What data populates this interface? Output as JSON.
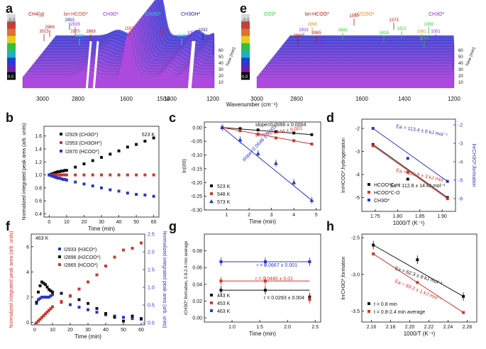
{
  "colors": {
    "black": "#111111",
    "red": "#d2342a",
    "blue": "#2a35c8",
    "green": "#2bc82b",
    "orange": "#e08a1e",
    "purple": "#8a2be2",
    "cyan": "#35d0e0",
    "darkred": "#b01818",
    "navy": "#1b1b8f"
  },
  "chart_data": [
    {
      "panel": "a",
      "type": "waterfall-spectra",
      "species": [
        {
          "name": "CH4(g)",
          "color": "#b01818"
        },
        {
          "name": "bri-HCOO*",
          "color": "#d2342a"
        },
        {
          "name": "CH3O*",
          "color": "#8a2be2"
        },
        {
          "name": "CH3O*",
          "color": "#35d0e0"
        },
        {
          "name": "CH3OH*",
          "color": "#1b1b8f"
        }
      ],
      "peaks": [
        "3015",
        "2969",
        "2953",
        "2929",
        "2870",
        "2820",
        "2869",
        "1592",
        "1374",
        "1146",
        "1053",
        "1032"
      ],
      "xticks": [
        "3000",
        "2800",
        "1600",
        "1500",
        "1400",
        "1200"
      ],
      "yticks": [
        "10",
        "20",
        "30",
        "40",
        "50",
        "60"
      ],
      "y_axis_label": "Time (min)",
      "colorbar": [
        "0.0",
        "-0.0"
      ]
    },
    {
      "panel": "e",
      "type": "waterfall-spectra",
      "species": [
        {
          "name": "CO3*",
          "color": "#2bc82b"
        },
        {
          "name": "bri-HCOO*",
          "color": "#b01818"
        },
        {
          "name": "H2COO*",
          "color": "#e08a1e"
        },
        {
          "name": "CH3O*",
          "color": "#8a2be2"
        }
      ],
      "peaks": [
        "2933",
        "2969",
        "2896",
        "2865",
        "2825",
        "1641",
        "1590",
        "1416",
        "1373",
        "1321",
        "1081",
        "1069",
        "1051",
        "1096"
      ],
      "xticks": [
        "3000",
        "2800",
        "1600",
        "1400",
        "1200"
      ],
      "yticks": [
        "10",
        "20",
        "30",
        "40",
        "50",
        "60"
      ],
      "y_axis_label": "Time (min)",
      "x_axis_label": "Wavenumber (cm⁻¹)",
      "colorbar": [
        "0.0",
        "-0.0"
      ]
    },
    {
      "panel": "b",
      "type": "scatter",
      "xlabel": "Time (min)",
      "ylabel": "Normalized integrated peak area (arb. units)",
      "xlim": [
        -3,
        63
      ],
      "ylim": [
        0.35,
        1.75
      ],
      "xticks": [
        "0",
        "10",
        "20",
        "30",
        "40",
        "50",
        "60"
      ],
      "yticks": [
        "0.4",
        "0.6",
        "0.8",
        "1.0",
        "1.2",
        "1.4",
        "1.6"
      ],
      "annotation": "523 K",
      "series": [
        {
          "name": "I2929 (CH3O*)",
          "color": "#111111",
          "x": [
            0,
            1,
            2,
            3,
            4,
            5,
            6,
            7,
            8,
            9,
            10,
            15,
            20,
            25,
            30,
            35,
            40,
            45,
            50,
            55,
            60
          ],
          "y": [
            1.0,
            1.01,
            1.02,
            1.03,
            1.04,
            1.05,
            1.05,
            1.06,
            1.06,
            1.07,
            1.07,
            1.12,
            1.17,
            1.22,
            1.27,
            1.32,
            1.37,
            1.43,
            1.47,
            1.52,
            1.57
          ]
        },
        {
          "name": "I2953 (CH3OH*)",
          "color": "#d2342a",
          "x": [
            0,
            1,
            2,
            3,
            4,
            5,
            6,
            7,
            8,
            9,
            10,
            15,
            20,
            25,
            30,
            35,
            40,
            45,
            50,
            55,
            60
          ],
          "y": [
            1.0,
            1.0,
            1.0,
            1.0,
            1.0,
            1.0,
            1.0,
            1.0,
            1.0,
            1.0,
            1.0,
            1.0,
            1.0,
            1.0,
            1.0,
            1.0,
            1.0,
            1.0,
            1.0,
            1.0,
            1.0
          ]
        },
        {
          "name": "I2870 (HCOO*)",
          "color": "#2a35c8",
          "x": [
            0,
            1,
            2,
            3,
            4,
            5,
            6,
            7,
            8,
            9,
            10,
            15,
            20,
            25,
            30,
            35,
            40,
            45,
            50,
            55,
            60
          ],
          "y": [
            1.0,
            0.99,
            0.98,
            0.97,
            0.96,
            0.95,
            0.95,
            0.94,
            0.93,
            0.93,
            0.92,
            0.89,
            0.86,
            0.83,
            0.8,
            0.77,
            0.75,
            0.72,
            0.7,
            0.69,
            0.67
          ]
        }
      ]
    },
    {
      "panel": "c",
      "type": "scatter-fit",
      "xlabel": "Time (min)",
      "ylabel": "ln(I/I0)",
      "xlim": [
        0,
        5.2
      ],
      "ylim": [
        -0.3,
        0.02
      ],
      "xticks": [
        "1",
        "2",
        "3",
        "4",
        "5"
      ],
      "yticks": [
        "0.00",
        "-0.05",
        "-0.10",
        "-0.15",
        "-0.20",
        "-0.25",
        "-0.30"
      ],
      "series": [
        {
          "name": "523 K",
          "color": "#111111",
          "slope_label": "slope=0.0066 ± 0.0004",
          "x": [
            0.8,
            1.6,
            2.4,
            3.2,
            4.0,
            4.8
          ],
          "y": [
            0.0,
            -0.004,
            -0.009,
            -0.015,
            -0.02,
            -0.026
          ]
        },
        {
          "name": "548 K",
          "color": "#d2342a",
          "slope_label": "slope=0.0144 ± 0.001",
          "x": [
            0.8,
            1.6,
            2.4,
            3.2,
            4.0,
            4.8
          ],
          "y": [
            0.0,
            -0.012,
            -0.024,
            -0.038,
            -0.048,
            -0.06
          ]
        },
        {
          "name": "573 K",
          "color": "#2a35c8",
          "slope_label": "slope=0.0646 ± 0.003",
          "x": [
            0.8,
            1.6,
            2.4,
            3.2,
            4.0,
            4.8
          ],
          "y": [
            0.0,
            -0.045,
            -0.095,
            -0.13,
            -0.2,
            -0.265
          ]
        }
      ]
    },
    {
      "panel": "d",
      "type": "arrhenius",
      "xlabel": "1000/T (K⁻¹)",
      "ylabel": "lnrHCOO*,hydrogenation",
      "ylabel2": "lnrCH3O*,formation",
      "xlim": [
        1.72,
        1.93
      ],
      "ylim": [
        -5.6,
        -1.6
      ],
      "xticks": [
        "1.75",
        "1.80",
        "1.85",
        "1.90"
      ],
      "yticks": [
        "-2",
        "-3",
        "-4",
        "-5"
      ],
      "y2ticks": [
        "-2",
        "-3",
        "-4",
        "-5",
        "-6"
      ],
      "series": [
        {
          "name": "HCOO*C-H",
          "color": "#111111",
          "ea": "Ea = 112.8 ± 14 kJ mol⁻¹",
          "x": [
            1.745,
            1.823,
            1.912
          ],
          "y": [
            -2.7,
            -4.2,
            -5.0
          ]
        },
        {
          "name": "HCOO*C-O",
          "color": "#d2342a",
          "ea": "Ea = 115.9 ± 3 kJ mol⁻¹",
          "x": [
            1.745,
            1.823,
            1.912
          ],
          "y": [
            -2.75,
            -3.9,
            -5.05
          ]
        },
        {
          "name": "CH3O*",
          "color": "#2a35c8",
          "ea": "Ea = 113.4 ± 6 kJ mol⁻¹",
          "x": [
            1.745,
            1.823,
            1.912
          ],
          "y": [
            -2.0,
            -3.3,
            -4.3
          ]
        }
      ]
    },
    {
      "panel": "f",
      "type": "scatter-dual",
      "xlabel": "Time (min)",
      "ylabel": "Normalized integrated peak area (arb. units)",
      "ylabel2": "Normalized integrated peak area (arb. units)",
      "annotation": "463 K",
      "xlim": [
        -2,
        62
      ],
      "ylim": [
        -0.2,
        7
      ],
      "y2lim": [
        -0.06,
        2.5
      ],
      "xticks": [
        "0",
        "10",
        "20",
        "30",
        "40",
        "50",
        "60"
      ],
      "yticks": [
        "0",
        "2",
        "4",
        "6"
      ],
      "y2ticks": [
        "0.0",
        "0.5",
        "1.0",
        "1.5",
        "2.0",
        "2.5"
      ],
      "series": [
        {
          "name": "I2933 (H3CO*)",
          "color": "#2a35c8",
          "axis": "left",
          "x": [
            1,
            2,
            3,
            4,
            5,
            6,
            7,
            8,
            9,
            10,
            15,
            20,
            25,
            30,
            35,
            40,
            45,
            50,
            55,
            60
          ],
          "y": [
            1.5,
            1.8,
            1.9,
            2.0,
            2.0,
            2.0,
            2.0,
            2.0,
            2.1,
            2.2,
            1.6,
            1.4,
            1.2,
            1.0,
            0.8,
            0.6,
            0.5,
            0.4,
            0.3,
            0.25
          ]
        },
        {
          "name": "I2896 (H2COO*)",
          "color": "#111111",
          "axis": "left",
          "x": [
            1,
            2,
            3,
            4,
            5,
            6,
            7,
            8,
            9,
            10,
            15,
            20,
            25,
            30,
            35,
            40,
            45,
            50,
            55,
            60
          ],
          "y": [
            1.6,
            2.4,
            2.9,
            3.2,
            3.1,
            3.0,
            2.8,
            2.6,
            2.5,
            2.4,
            2.3,
            2.1,
            1.8,
            1.5,
            1.1,
            0.7,
            0.4,
            0.1,
            0.5,
            0.3
          ]
        },
        {
          "name": "I2865 (HCOO*)",
          "color": "#d2342a",
          "axis": "right",
          "x": [
            1,
            2,
            3,
            4,
            5,
            6,
            7,
            8,
            9,
            10,
            15,
            20,
            25,
            30,
            35,
            40,
            45,
            50,
            55,
            60
          ],
          "y": [
            0.0,
            0.05,
            0.1,
            0.15,
            0.2,
            0.25,
            0.3,
            0.35,
            0.4,
            0.45,
            0.6,
            0.75,
            0.95,
            1.15,
            1.35,
            1.6,
            1.85,
            2.05,
            2.1,
            2.25
          ]
        }
      ]
    },
    {
      "panel": "g",
      "type": "scatter-fit",
      "xlabel": "Time (min)",
      "ylabel": "rCH3O*,formation, 0.8-2.4 min average",
      "xlim": [
        0.5,
        2.6
      ],
      "ylim": [
        -0.005,
        0.1
      ],
      "xticks": [
        "1.0",
        "1.5",
        "2.0",
        "2.5"
      ],
      "yticks": [
        "0.00",
        "0.02",
        "0.04",
        "0.06",
        "0.08"
      ],
      "series": [
        {
          "name": "443 K",
          "color": "#111111",
          "r_label": "r = 0.0293 ± 0.004",
          "x": [
            0.8,
            1.6,
            2.4
          ],
          "y": [
            0.033,
            0.033,
            0.025
          ]
        },
        {
          "name": "453 K",
          "color": "#d2342a",
          "r_label": "r = 0.0440 ± 0.01",
          "x": [
            0.8,
            1.6,
            2.4
          ],
          "y": [
            0.044,
            0.044,
            0.022
          ]
        },
        {
          "name": "463 K",
          "color": "#2a35c8",
          "r_label": "r = 0.0667 ± 0.001",
          "x": [
            0.8,
            1.6,
            2.4
          ],
          "y": [
            0.067,
            0.067,
            0.067
          ]
        }
      ]
    },
    {
      "panel": "h",
      "type": "arrhenius",
      "xlabel": "1000/T (K⁻¹)",
      "ylabel": "lnrCH3O*,formation",
      "xlim": [
        2.15,
        2.27
      ],
      "ylim": [
        -3.65,
        -2.45
      ],
      "xticks": [
        "2.16",
        "2.18",
        "2.20",
        "2.22",
        "2.24",
        "2.26"
      ],
      "yticks": [
        "-2.5",
        "-3.0",
        "-3.5"
      ],
      "series": [
        {
          "name": "t = 0.8 min",
          "color": "#111111",
          "ea": "Ea = 62.3 ± 9 kJ mol⁻¹",
          "x": [
            2.162,
            2.208,
            2.256
          ],
          "y": [
            -2.6,
            -2.8,
            -3.3
          ]
        },
        {
          "name": "t = 0.8-2.4 min average",
          "color": "#d2342a",
          "ea": "Ea = 69.2 ± 1 kJ mol⁻¹",
          "x": [
            2.162,
            2.208,
            2.256
          ],
          "y": [
            -2.72,
            -3.11,
            -3.52
          ]
        }
      ]
    }
  ]
}
